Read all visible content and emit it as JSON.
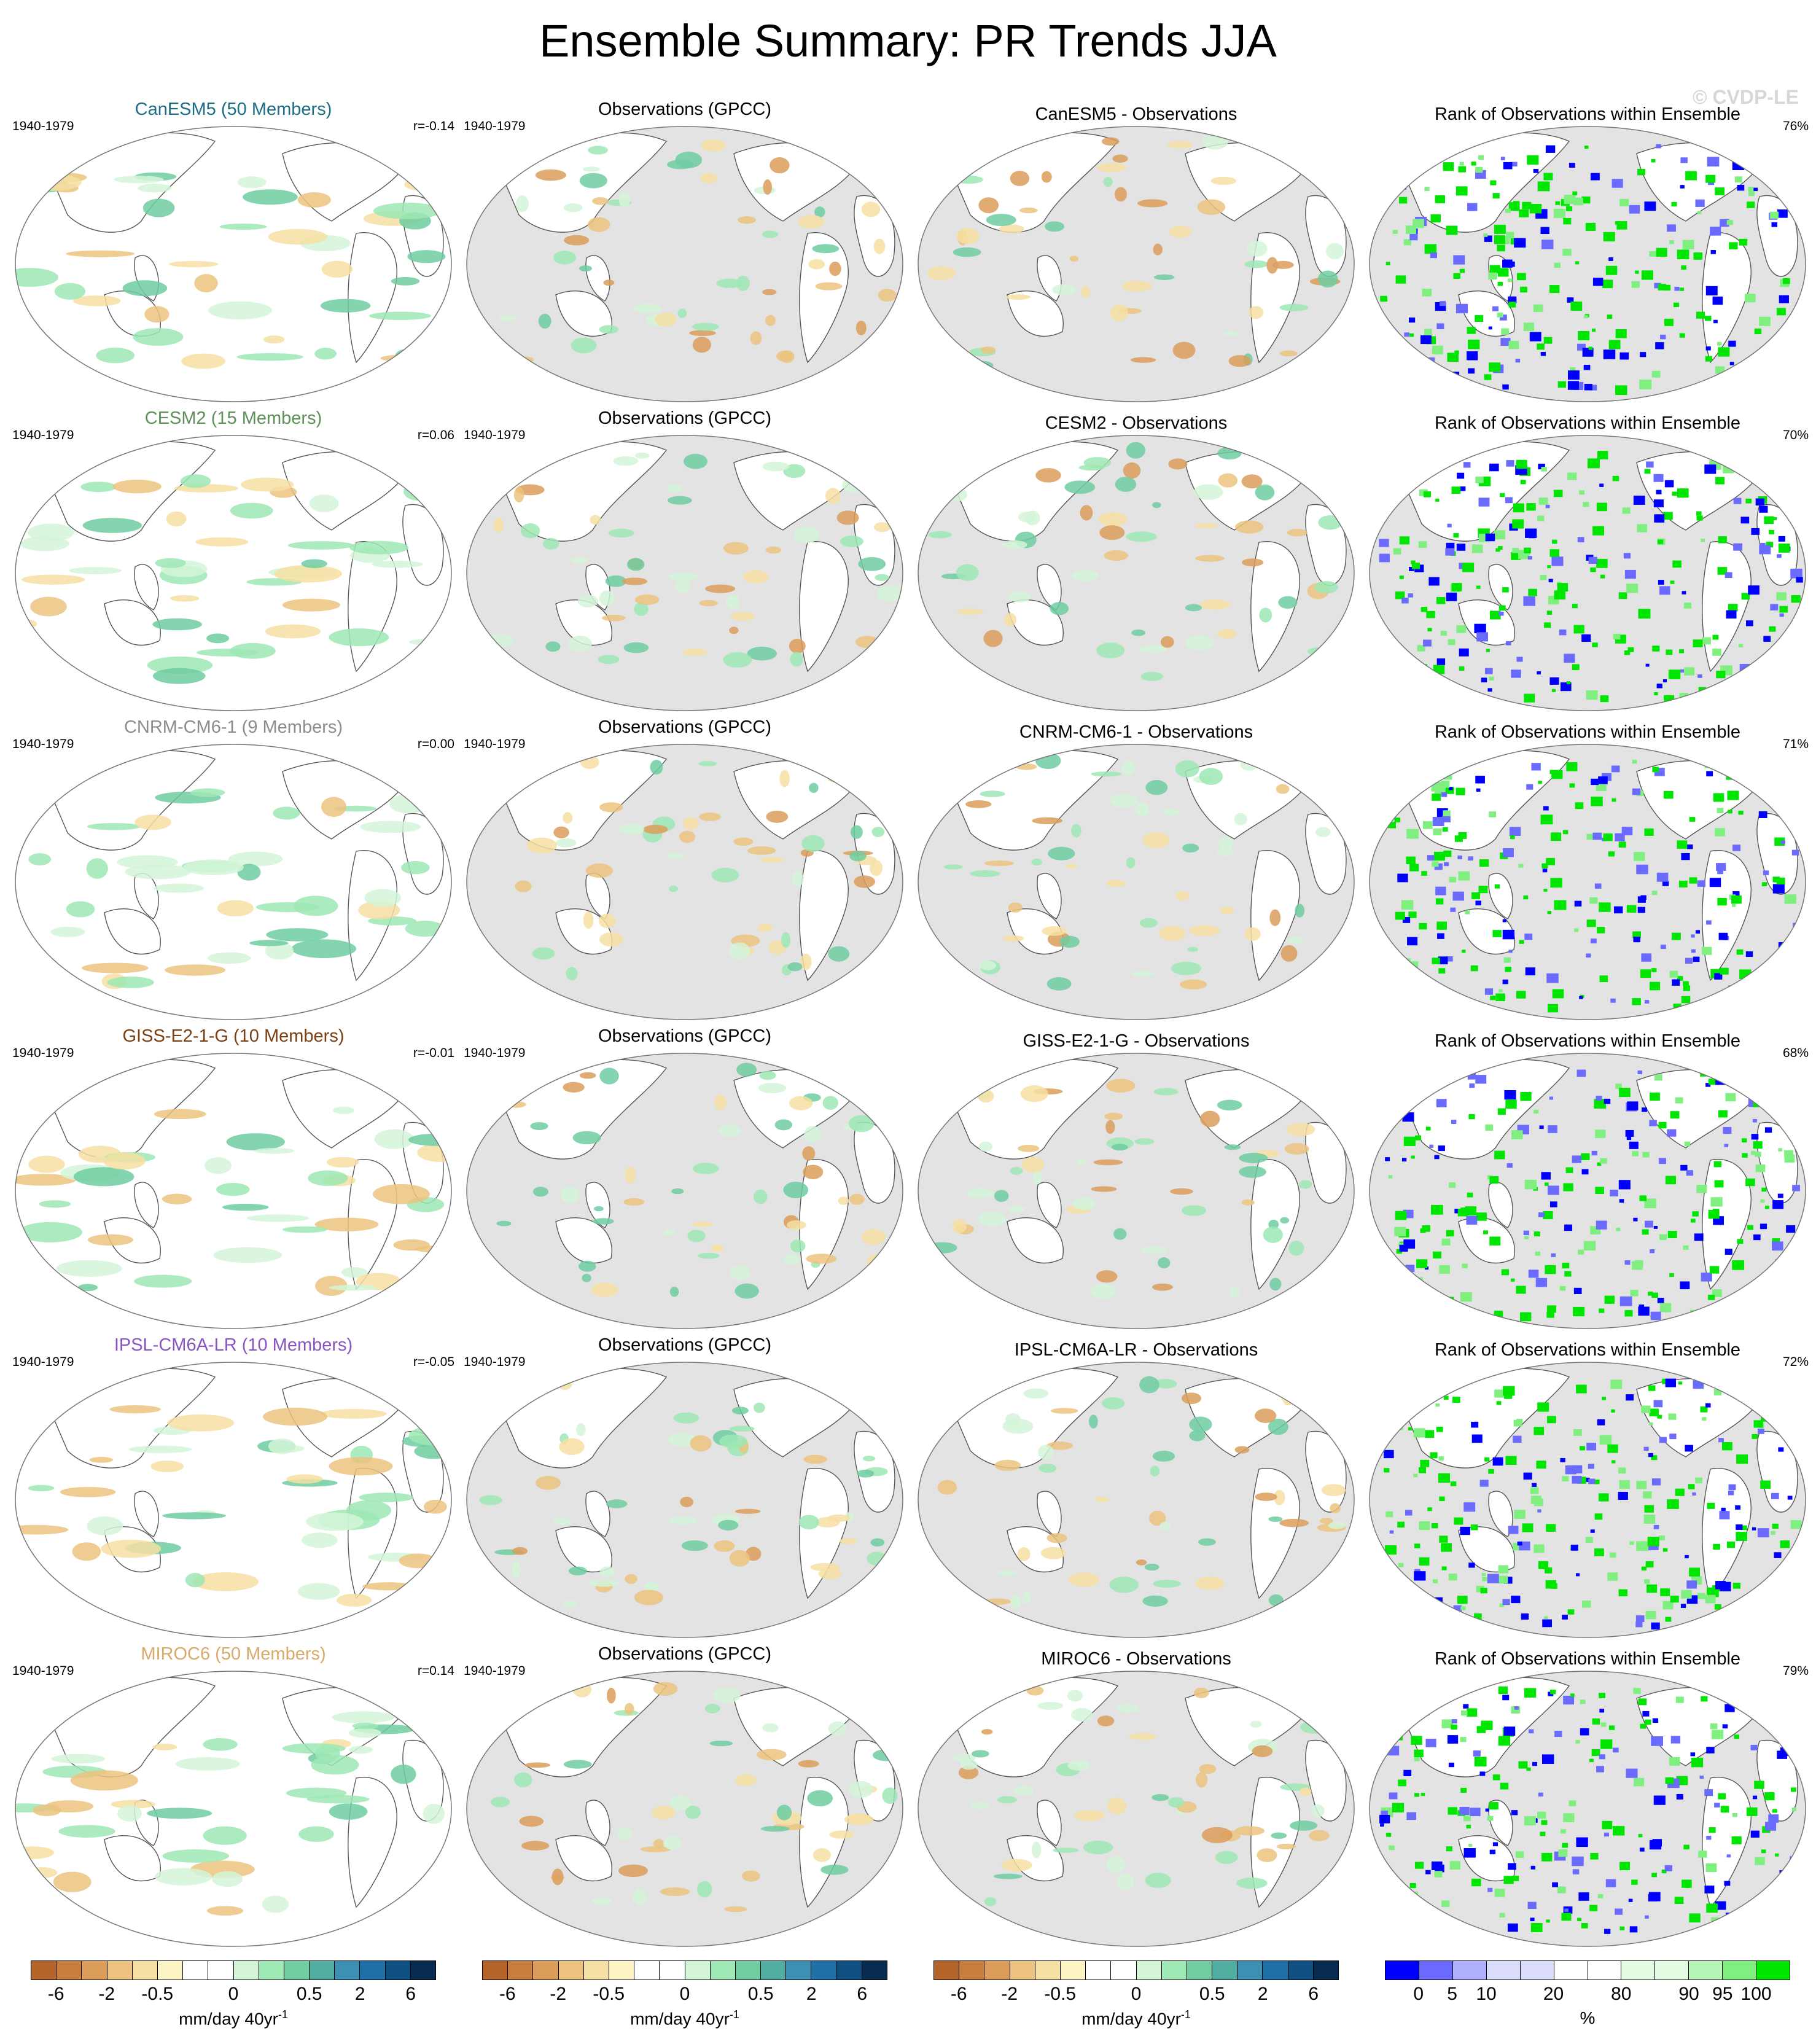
{
  "title": "Ensemble Summary: PR Trends JJA",
  "watermark": "© CVDP-LE",
  "rows": [
    {
      "model_title": "CanESM5 (50 Members)",
      "model_color": "#1b6e86",
      "period": "1940-1979",
      "r": "r=-0.14",
      "obs_title": "Observations (GPCC)",
      "diff_title": "CanESM5 - Observations",
      "rank_title": "Rank of Observations within Ensemble",
      "rank_pct": "76%"
    },
    {
      "model_title": "CESM2 (15 Members)",
      "model_color": "#5f8f5b",
      "period": "1940-1979",
      "r": "r=0.06",
      "obs_title": "Observations (GPCC)",
      "diff_title": "CESM2 - Observations",
      "rank_title": "Rank of Observations within Ensemble",
      "rank_pct": "70%"
    },
    {
      "model_title": "CNRM-CM6-1 (9 Members)",
      "model_color": "#8d8d8d",
      "period": "1940-1979",
      "r": "r=0.00",
      "obs_title": "Observations (GPCC)",
      "diff_title": "CNRM-CM6-1 - Observations",
      "rank_title": "Rank of Observations within Ensemble",
      "rank_pct": "71%"
    },
    {
      "model_title": "GISS-E2-1-G (10 Members)",
      "model_color": "#7a3f12",
      "period": "1940-1979",
      "r": "r=-0.01",
      "obs_title": "Observations (GPCC)",
      "diff_title": "GISS-E2-1-G - Observations",
      "rank_title": "Rank of Observations within Ensemble",
      "rank_pct": "68%"
    },
    {
      "model_title": "IPSL-CM6A-LR (10 Members)",
      "model_color": "#8a55c2",
      "period": "1940-1979",
      "r": "r=-0.05",
      "obs_title": "Observations (GPCC)",
      "diff_title": "IPSL-CM6A-LR - Observations",
      "rank_title": "Rank of Observations within Ensemble",
      "rank_pct": "72%"
    },
    {
      "model_title": "MIROC6 (50 Members)",
      "model_color": "#d9a96a",
      "period": "1940-1979",
      "r": "r=0.14",
      "obs_title": "Observations (GPCC)",
      "diff_title": "MIROC6 - Observations",
      "rank_title": "Rank of Observations within Ensemble",
      "rank_pct": "79%"
    }
  ],
  "colorbars": {
    "trend": {
      "colors": [
        "#b5652a",
        "#c97e3e",
        "#dc9d5a",
        "#ecc37f",
        "#f6dfa2",
        "#fdf4c6",
        "#ffffff",
        "#ffffff",
        "#d4f5d8",
        "#9ee8b4",
        "#6fcda1",
        "#4fae9f",
        "#3d8fb4",
        "#2070a8",
        "#0f4f82",
        "#072c4f"
      ],
      "ticks": [
        "-6",
        "-2",
        "-0.5",
        "0",
        "0.5",
        "2",
        "6"
      ],
      "unit": "mm/day 40yr",
      "unit_sup": "-1"
    },
    "rank": {
      "colors": [
        "#0000ff",
        "#6a6aff",
        "#b0b0ff",
        "#dcdcfb",
        "#dcdcfb",
        "#ffffff",
        "#ffffff",
        "#e2fbe2",
        "#e2fbe2",
        "#b8f5b8",
        "#7ff07f",
        "#00e600"
      ],
      "ticks": [
        "0",
        "5",
        "10",
        "20",
        "80",
        "90",
        "95",
        "100"
      ],
      "unit": "%"
    }
  }
}
